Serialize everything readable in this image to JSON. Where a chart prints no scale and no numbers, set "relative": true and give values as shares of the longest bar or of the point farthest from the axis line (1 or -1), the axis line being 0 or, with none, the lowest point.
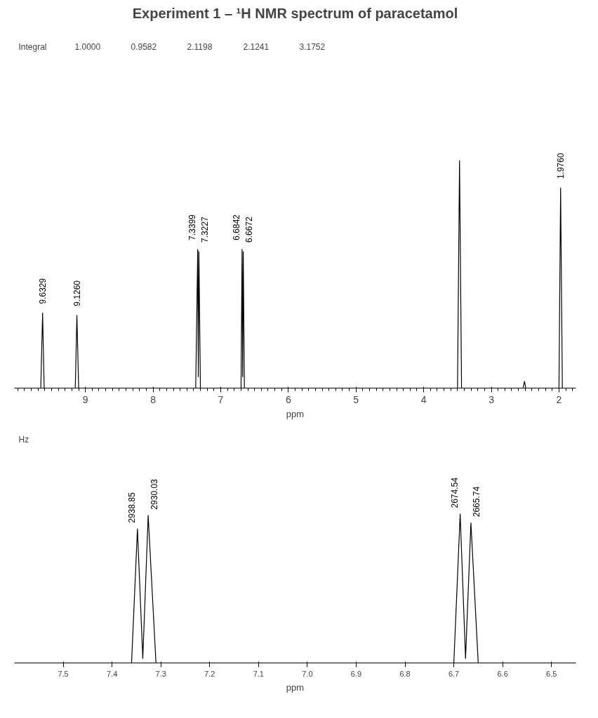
{
  "chart_data": [
    {
      "type": "line",
      "title": "Experiment 1 – ¹H NMR spectrum of paracetamol",
      "xlabel": "ppm",
      "relative": true,
      "grid": false,
      "marker": "none",
      "line_style": "solid",
      "xlim": [
        10.05,
        1.75
      ],
      "xticks": [
        2,
        3,
        4,
        5,
        6,
        7,
        8,
        9
      ],
      "x": [
        10.0,
        9.66,
        9.6329,
        9.61,
        9.15,
        9.126,
        9.1,
        7.37,
        7.3399,
        7.3313,
        7.3227,
        7.3,
        6.7,
        6.6842,
        6.6757,
        6.6672,
        6.65,
        3.5,
        3.47,
        3.44,
        2.53,
        2.51,
        2.49,
        2.0,
        1.976,
        1.95,
        1.8
      ],
      "series": [
        {
          "color": "#000000",
          "values": [
            0,
            0,
            0.33,
            0,
            0,
            0.32,
            0,
            0,
            0.61,
            0.05,
            0.6,
            0,
            0,
            0.61,
            0.05,
            0.6,
            0,
            0,
            1,
            0,
            0,
            0.03,
            0,
            0,
            0.88,
            0,
            0
          ]
        }
      ],
      "annotations": [
        {
          "text": "9.6329",
          "x": 9.6329,
          "y": 0.33
        },
        {
          "text": "9.1260",
          "x": 9.126,
          "y": 0.32
        },
        {
          "text": "7.3399",
          "x": 7.3399,
          "y": 0.61
        },
        {
          "text": "7.3227",
          "x": 7.3227,
          "y": 0.6
        },
        {
          "text": "6.6842",
          "x": 6.6842,
          "y": 0.61
        },
        {
          "text": "6.6672",
          "x": 6.6672,
          "y": 0.6
        },
        {
          "text": "1.9760",
          "x": 1.976,
          "y": 0.88
        },
        "Integral",
        "1.0000",
        "0.9582",
        "2.1198",
        "2.1241",
        "3.1752"
      ]
    },
    {
      "type": "line",
      "xlabel": "ppm",
      "relative": true,
      "grid": false,
      "marker": "none",
      "line_style": "solid",
      "xlim": [
        7.6,
        6.45
      ],
      "xticks": [
        6.5,
        6.6,
        6.7,
        6.8,
        6.9,
        {
          "value": 7,
          "label": "7.0"
        },
        7.1,
        7.2,
        7.3,
        7.4,
        7.5
      ],
      "x": [
        7.58,
        7.36,
        7.348,
        7.337,
        7.326,
        7.31,
        6.7,
        6.687,
        6.676,
        6.665,
        6.65,
        6.47
      ],
      "series": [
        {
          "color": "#000000",
          "values": [
            0,
            0,
            0.9,
            0.03,
            0.99,
            0,
            0,
            1.0,
            0.03,
            0.94,
            0,
            0
          ]
        }
      ],
      "annotations": [
        {
          "text": "2938.85",
          "x": 7.348,
          "y": 0.9
        },
        {
          "text": "2930.03",
          "x": 7.326,
          "y": 0.99
        },
        {
          "text": "2674.54",
          "x": 6.687,
          "y": 1.0
        },
        {
          "text": "2665.74",
          "x": 6.665,
          "y": 0.94
        },
        "Hz"
      ]
    }
  ]
}
